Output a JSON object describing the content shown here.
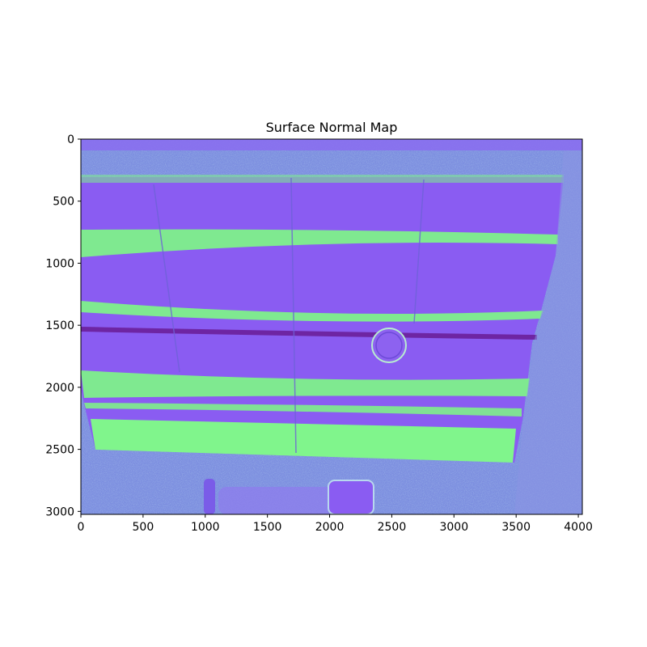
{
  "chart_data": {
    "type": "heatmap",
    "title": "Surface Normal Map",
    "xlabel": "",
    "ylabel": "",
    "image_width": 4032,
    "image_height": 3024,
    "xlim": [
      0,
      4032
    ],
    "ylim": [
      3024,
      0
    ],
    "y_axis_inverted": true,
    "grid": false,
    "xticks": [
      0,
      500,
      1000,
      1500,
      2000,
      2500,
      3000,
      3500,
      4000
    ],
    "yticks": [
      0,
      500,
      1000,
      1500,
      2000,
      2500,
      3000
    ],
    "colors": {
      "background_purple": "#8a5cf2",
      "upper_band_green": "#7ef08a",
      "lower_panel_green": "#80f58c",
      "noise_teal": "#7fa8d8",
      "seam_dark": "#6a1f9a"
    }
  }
}
